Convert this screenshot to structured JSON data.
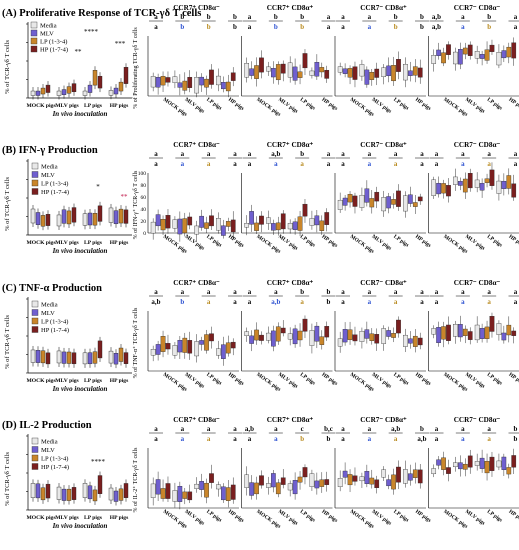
{
  "colors": {
    "media": "#e8e8e8",
    "mlv": "#6f5fcf",
    "lp": "#c9852a",
    "hp": "#7a1f1f",
    "sig_black": "#000000",
    "sig_blue": "#2a4fd0",
    "sig_gold": "#b88a1e",
    "sig_red": "#c0184a"
  },
  "legend": [
    {
      "key": "media",
      "label": "Media"
    },
    {
      "key": "mlv",
      "label": "MLV"
    },
    {
      "key": "lp",
      "label": "LP (1-3-4)"
    },
    {
      "key": "hp",
      "label": "HP (1-7-4)"
    }
  ],
  "group_labels": [
    "MOCK pigs",
    "MLV pigs",
    "LP pigs",
    "HP pigs"
  ],
  "subset_titles": [
    "CCR7⁺ CD8α⁻",
    "CCR7⁺ CD8α⁺",
    "CCR7⁻ CD8α⁺",
    "CCR7⁻ CD8α⁻"
  ],
  "chart_data": [
    {
      "type": "box",
      "panel": "(A)",
      "title": "Proliferative Response of TCR-γδ T cells",
      "ylabel": "% of TCR-γδ T cells",
      "xlabel": "In vivo inoculation",
      "categories": [
        "MOCK pigs",
        "MLV pigs",
        "LP pigs",
        "HP pigs"
      ],
      "series": [
        "Media",
        "MLV",
        "LP (1-3-4)",
        "HP (1-7-4)"
      ],
      "medians": [
        [
          0.5,
          0.5,
          1.0,
          1.2
        ],
        [
          1.0,
          1.5,
          3.0,
          2.0
        ],
        [
          2.0,
          2.5,
          8.0,
          4.0
        ],
        [
          3.0,
          3.5,
          6.0,
          9.0
        ]
      ],
      "annotations": [
        "**",
        "****",
        "***"
      ],
      "subsets": [
        {
          "title": "CCR7⁺ CD8α⁻",
          "ylabel": "% of Proliferating TCR-γδ T cells",
          "letters": [
            "a",
            "b",
            "b",
            "b"
          ],
          "letters2": [
            "a",
            "b",
            "b",
            "b"
          ]
        },
        {
          "title": "CCR7⁺ CD8α⁺",
          "letters": [
            "a",
            "b",
            "b",
            "a"
          ],
          "letters2": [
            "a",
            "b",
            "b",
            "a"
          ]
        },
        {
          "title": "CCR7⁻ CD8α⁺",
          "letters": [
            "a",
            "a",
            "b",
            "b"
          ],
          "letters2": [
            "a",
            "a",
            "b",
            "b"
          ]
        },
        {
          "title": "CCR7⁻ CD8α⁻",
          "letters": [
            "a,b",
            "a",
            "b",
            "a"
          ],
          "letters2": [
            "a,b",
            "a",
            "b",
            "a"
          ]
        }
      ]
    },
    {
      "type": "box",
      "panel": "(B)",
      "title": "IFN-γ Production",
      "ylabel": "% of TCR-γδ T cells",
      "xlabel": "In vivo inoculation",
      "categories": [
        "MOCK pigs",
        "MLV pigs",
        "LP pigs",
        "HP pigs"
      ],
      "series": [
        "Media",
        "MLV",
        "LP (1-3-4)",
        "HP (1-7-4)"
      ],
      "annotations": [
        "*",
        "**"
      ],
      "subsets": [
        {
          "title": "CCR7⁺ CD8α⁻",
          "ylabel": "% of IFN-γ⁺ TCR-γδ T cells",
          "yticks": [
            0,
            20,
            40,
            60,
            80,
            100
          ],
          "letters": [
            "a",
            "a",
            "a",
            "a"
          ],
          "letters2": [
            "a",
            "a",
            "a",
            "a"
          ]
        },
        {
          "title": "CCR7⁺ CD8α⁺",
          "letters": [
            "a",
            "a,b",
            "b",
            "a"
          ],
          "letters2": [
            "a",
            "a",
            "a",
            "a"
          ]
        },
        {
          "title": "CCR7⁻ CD8α⁺",
          "letters": [
            "a",
            "a",
            "a",
            "a"
          ],
          "letters2": [
            "a",
            "a",
            "a",
            "a"
          ]
        },
        {
          "title": "CCR7⁻ CD8α⁻",
          "letters": [
            "a",
            "a",
            "a",
            "a"
          ],
          "letters2": [
            "a",
            "a",
            "a",
            "a"
          ]
        }
      ]
    },
    {
      "type": "box",
      "panel": "(C)",
      "title": "TNF-α Production",
      "ylabel": "% of TCR-γδ T cells",
      "xlabel": "In vivo inoculation",
      "categories": [
        "MOCK pigs",
        "MLV pigs",
        "LP pigs",
        "HP pigs"
      ],
      "series": [
        "Media",
        "MLV",
        "LP (1-3-4)",
        "HP (1-7-4)"
      ],
      "subsets": [
        {
          "title": "CCR7⁺ CD8α⁻",
          "ylabel": "% of TNF-α⁺ TCR-γδ T cells",
          "letters": [
            "a",
            "a",
            "a",
            "a"
          ],
          "letters2": [
            "a,b",
            "b",
            "a",
            "a"
          ]
        },
        {
          "title": "CCR7⁺ CD8α⁺",
          "letters": [
            "a",
            "a",
            "b",
            "b"
          ],
          "letters2": [
            "a",
            "a,b",
            "a",
            "b"
          ]
        },
        {
          "title": "CCR7⁻ CD8α⁺",
          "letters": [
            "a",
            "a",
            "a",
            "a"
          ],
          "letters2": [
            "a",
            "a",
            "a",
            "a"
          ]
        },
        {
          "title": "CCR7⁻ CD8α⁻",
          "letters": [
            "a",
            "a",
            "a",
            "a"
          ],
          "letters2": [
            "a",
            "a",
            "a",
            "a"
          ]
        }
      ]
    },
    {
      "type": "box",
      "panel": "(D)",
      "title": "IL-2 Production",
      "ylabel": "% of TCR-γδ T cells",
      "xlabel": "In vivo inoculation",
      "categories": [
        "MOCK pigs",
        "MLV pigs",
        "LP pigs",
        "HP pigs"
      ],
      "series": [
        "Media",
        "MLV",
        "LP (1-3-4)",
        "HP (1-7-4)"
      ],
      "annotations": [
        "****"
      ],
      "subsets": [
        {
          "title": "CCR7⁺ CD8α⁻",
          "ylabel": "% of IL-2⁺ TCR-γδ T cells",
          "letters": [
            "a",
            "a",
            "a",
            "a"
          ],
          "letters2": [
            "a",
            "a",
            "a",
            "a"
          ]
        },
        {
          "title": "CCR7⁺ CD8α⁺",
          "letters": [
            "a,b",
            "a",
            "c",
            "b,c"
          ],
          "letters2": [
            "a",
            "a",
            "b",
            "b"
          ]
        },
        {
          "title": "CCR7⁻ CD8α⁺",
          "letters": [
            "a",
            "a",
            "a,b",
            "b"
          ],
          "letters2": [
            "a",
            "a",
            "a",
            "a,b"
          ]
        },
        {
          "title": "CCR7⁻ CD8α⁻",
          "letters": [
            "a",
            "a",
            "a",
            "b"
          ],
          "letters2": [
            "a",
            "a",
            "a",
            "b"
          ]
        }
      ]
    }
  ]
}
